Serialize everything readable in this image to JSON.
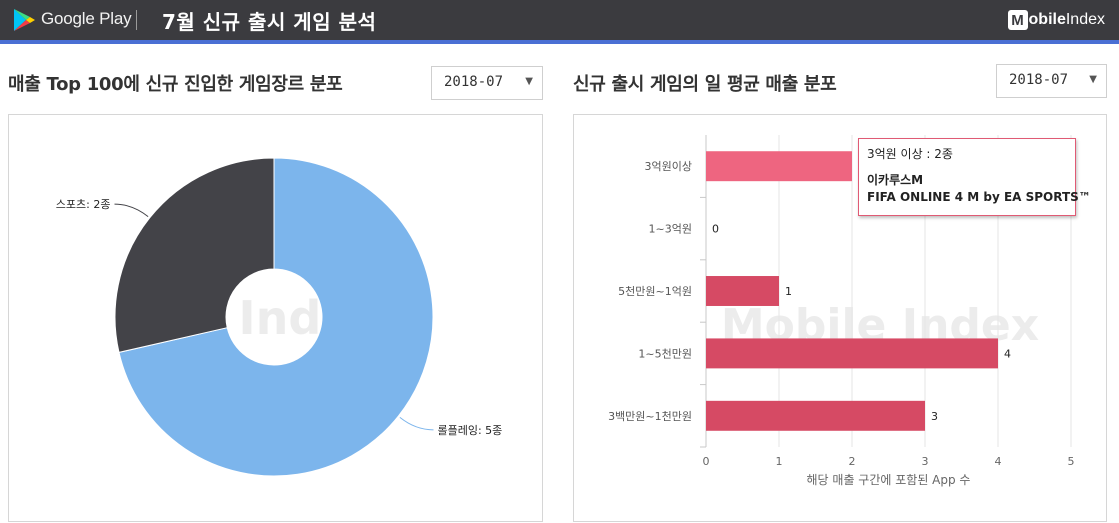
{
  "header": {
    "store_name": "Google Play",
    "title": "7월 신규 출시 게임 분석",
    "brand_letter": "M",
    "brand_word1": "obile",
    "brand_word2": "Index"
  },
  "left": {
    "title": "매출 Top 100에 신규 진입한 게임장르 분포",
    "select_value": "2018-07",
    "watermark": "ile Index"
  },
  "right": {
    "title": "신규 출시 게임의 일 평균 매출 분포",
    "select_value": "2018-07",
    "watermark": "Mobile Index"
  },
  "tooltip": {
    "header": "3억원 이상 : 2종",
    "items": [
      "이카루스M",
      "FIFA ONLINE 4 M by EA SPORTS™"
    ]
  },
  "colors": {
    "header_bg": "#3b3b3f",
    "accent": "#4a6fd4",
    "pie_roleplay": "#7cb5ec",
    "pie_sports": "#434348",
    "bar": "#d64a64",
    "bar_highlight": "#ee6580"
  },
  "chart_data": [
    {
      "type": "pie",
      "title": "",
      "donut": true,
      "slices": [
        {
          "label": "롤플레잉",
          "value": 5,
          "display": "롤플레잉: 5종",
          "color": "#7cb5ec"
        },
        {
          "label": "스포츠",
          "value": 2,
          "display": "스포츠: 2종",
          "color": "#434348"
        }
      ]
    },
    {
      "type": "bar",
      "orientation": "horizontal",
      "title": "",
      "categories": [
        "3억원이상",
        "1~3억원",
        "5천만원~1억원",
        "1~5천만원",
        "3백만원~1천만원"
      ],
      "values": [
        2,
        0,
        1,
        4,
        3
      ],
      "data_labels": [
        "",
        "0",
        "1",
        "4",
        "3"
      ],
      "xlabel": "해당 매출 구간에 포함된 App 수",
      "ylabel": "",
      "xlim": [
        0,
        5
      ],
      "x_ticks": [
        "0",
        "1",
        "2",
        "3",
        "4",
        "5"
      ],
      "highlighted_category": "3억원이상",
      "grid": true
    }
  ]
}
